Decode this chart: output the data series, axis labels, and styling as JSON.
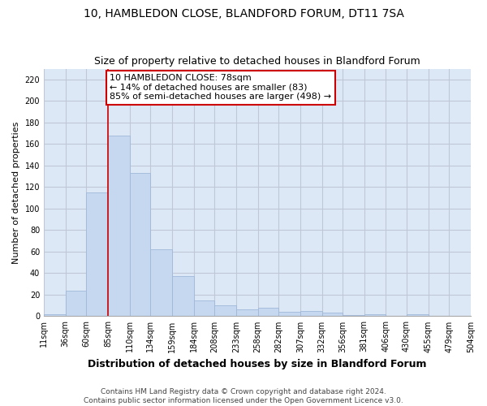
{
  "title1": "10, HAMBLEDON CLOSE, BLANDFORD FORUM, DT11 7SA",
  "title2": "Size of property relative to detached houses in Blandford Forum",
  "xlabel": "Distribution of detached houses by size in Blandford Forum",
  "ylabel": "Number of detached properties",
  "bar_values": [
    2,
    24,
    115,
    168,
    133,
    62,
    37,
    15,
    10,
    6,
    8,
    4,
    5,
    3,
    1,
    2,
    0,
    2,
    0,
    0
  ],
  "bin_edges": [
    11,
    36,
    60,
    85,
    110,
    134,
    159,
    184,
    208,
    233,
    258,
    282,
    307,
    332,
    356,
    381,
    406,
    430,
    455,
    479,
    504
  ],
  "tick_labels": [
    "11sqm",
    "36sqm",
    "60sqm",
    "85sqm",
    "110sqm",
    "134sqm",
    "159sqm",
    "184sqm",
    "208sqm",
    "233sqm",
    "258sqm",
    "282sqm",
    "307sqm",
    "332sqm",
    "356sqm",
    "381sqm",
    "406sqm",
    "430sqm",
    "455sqm",
    "479sqm",
    "504sqm"
  ],
  "bar_color": "#c5d8f0",
  "bar_edge_color": "#a0b8d8",
  "grid_color": "#c0c8d8",
  "background_color": "#dce8f5",
  "annotation_text": "10 HAMBLEDON CLOSE: 78sqm\n← 14% of detached houses are smaller (83)\n85% of semi-detached houses are larger (498) →",
  "annotation_box_color": "#ffffff",
  "annotation_box_edge": "#cc0000",
  "redline_x": 85,
  "ylim": [
    0,
    230
  ],
  "yticks": [
    0,
    20,
    40,
    60,
    80,
    100,
    120,
    140,
    160,
    180,
    200,
    220
  ],
  "footer1": "Contains HM Land Registry data © Crown copyright and database right 2024.",
  "footer2": "Contains public sector information licensed under the Open Government Licence v3.0.",
  "title1_fontsize": 10,
  "title2_fontsize": 9,
  "xlabel_fontsize": 9,
  "ylabel_fontsize": 8,
  "tick_fontsize": 7,
  "annotation_fontsize": 8,
  "footer_fontsize": 6.5
}
